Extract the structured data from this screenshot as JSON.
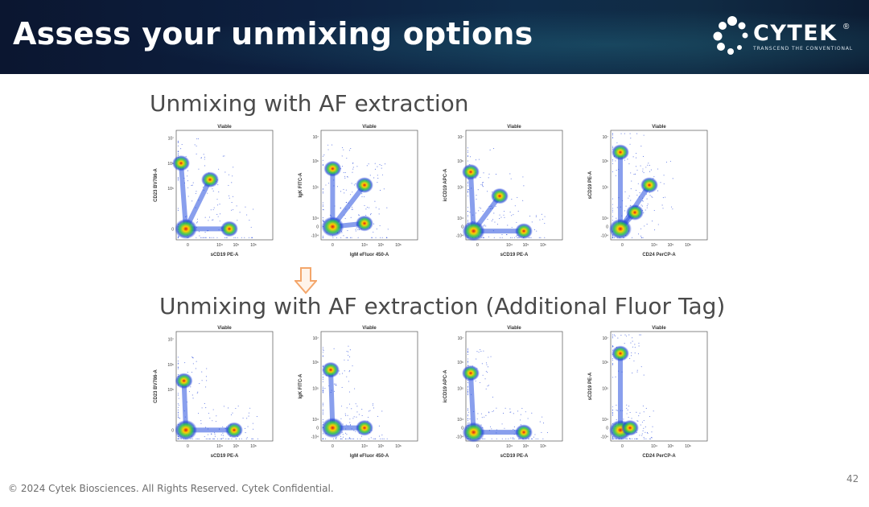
{
  "slide": {
    "title": "Assess your unmixing options",
    "logo_text": "CYTEK",
    "logo_mark": "®",
    "logo_tagline": "TRANSCEND THE CONVENTIONAL",
    "footer": "© 2024 Cytek Biosciences. All Rights Reserved. Cytek Confidential.",
    "page_number": "42",
    "accent_color": "#f3a66b"
  },
  "sections": [
    {
      "title": "Unmixing with AF extraction"
    },
    {
      "title": "Unmixing with AF extraction (Additional Fluor Tag)"
    }
  ],
  "chart_data": [
    {
      "type": "scatter",
      "plot_style": "density",
      "title": "Viable",
      "xlabel": "sCD19 PE-A",
      "ylabel": "CD23 BV786-A",
      "x_ticks": [
        "0",
        "10⁴",
        "10⁵",
        "10⁶"
      ],
      "y_ticks": [
        "0",
        "10⁵",
        "10⁶",
        "10⁷"
      ],
      "populations": [
        {
          "x": 0.1,
          "y": 0.1
        },
        {
          "x": 0.05,
          "y": 0.7
        },
        {
          "x": 0.55,
          "y": 0.1
        },
        {
          "x": 0.35,
          "y": 0.55
        }
      ]
    },
    {
      "type": "scatter",
      "plot_style": "density",
      "title": "Viable",
      "xlabel": "IgM eFluor 450-A",
      "ylabel": "IgK FITC-A",
      "x_ticks": [
        "0",
        "10⁴",
        "10⁵",
        "10⁶"
      ],
      "y_ticks": [
        "-10⁴",
        "0",
        "10⁴",
        "10⁵",
        "10⁶",
        "10⁷"
      ],
      "populations": [
        {
          "x": 0.12,
          "y": 0.12
        },
        {
          "x": 0.12,
          "y": 0.65
        },
        {
          "x": 0.45,
          "y": 0.15
        },
        {
          "x": 0.45,
          "y": 0.5
        }
      ]
    },
    {
      "type": "scatter",
      "plot_style": "density",
      "title": "Viable",
      "xlabel": "sCD19 PE-A",
      "ylabel": "icCD19 APC-A",
      "x_ticks": [
        "0",
        "10⁴",
        "10⁵",
        "10⁶"
      ],
      "y_ticks": [
        "-10⁴",
        "0",
        "10⁴",
        "10⁵",
        "10⁶",
        "10⁷"
      ],
      "populations": [
        {
          "x": 0.08,
          "y": 0.08
        },
        {
          "x": 0.05,
          "y": 0.62
        },
        {
          "x": 0.6,
          "y": 0.08
        },
        {
          "x": 0.35,
          "y": 0.4
        }
      ]
    },
    {
      "type": "scatter",
      "plot_style": "density",
      "title": "Viable",
      "xlabel": "CD24 PerCP-A",
      "ylabel": "sCD19 PE-A",
      "x_ticks": [
        "0",
        "10⁴",
        "10⁵",
        "10⁶"
      ],
      "y_ticks": [
        "-10⁴",
        "0",
        "10⁴",
        "10⁵",
        "10⁶",
        "10⁷"
      ],
      "populations": [
        {
          "x": 0.1,
          "y": 0.1
        },
        {
          "x": 0.1,
          "y": 0.8
        },
        {
          "x": 0.25,
          "y": 0.25
        },
        {
          "x": 0.4,
          "y": 0.5
        }
      ]
    },
    {
      "type": "scatter",
      "plot_style": "density",
      "title": "Viable",
      "xlabel": "sCD19 PE-A",
      "ylabel": "CD23 BV786-A",
      "x_ticks": [
        "0",
        "10⁴",
        "10⁵",
        "10⁶"
      ],
      "y_ticks": [
        "0",
        "10⁵",
        "10⁶",
        "10⁷"
      ],
      "populations": [
        {
          "x": 0.1,
          "y": 0.1
        },
        {
          "x": 0.08,
          "y": 0.55
        },
        {
          "x": 0.6,
          "y": 0.1
        }
      ]
    },
    {
      "type": "scatter",
      "plot_style": "density",
      "title": "Viable",
      "xlabel": "IgM eFluor 450-A",
      "ylabel": "IgK FITC-A",
      "x_ticks": [
        "0",
        "10⁴",
        "10⁵",
        "10⁶"
      ],
      "y_ticks": [
        "-10⁴",
        "0",
        "10⁴",
        "10⁵",
        "10⁶",
        "10⁷"
      ],
      "populations": [
        {
          "x": 0.12,
          "y": 0.12
        },
        {
          "x": 0.1,
          "y": 0.65
        },
        {
          "x": 0.45,
          "y": 0.12
        }
      ]
    },
    {
      "type": "scatter",
      "plot_style": "density",
      "title": "Viable",
      "xlabel": "sCD19 PE-A",
      "ylabel": "icCD19 APC-A",
      "x_ticks": [
        "0",
        "10⁴",
        "10⁵",
        "10⁶"
      ],
      "y_ticks": [
        "-10⁴",
        "0",
        "10⁴",
        "10⁵",
        "10⁶",
        "10⁷"
      ],
      "populations": [
        {
          "x": 0.08,
          "y": 0.08
        },
        {
          "x": 0.05,
          "y": 0.62
        },
        {
          "x": 0.6,
          "y": 0.08
        }
      ]
    },
    {
      "type": "scatter",
      "plot_style": "density",
      "title": "Viable",
      "xlabel": "CD24 PerCP-A",
      "ylabel": "sCD19 PE-A",
      "x_ticks": [
        "0",
        "10⁴",
        "10⁵",
        "10⁶"
      ],
      "y_ticks": [
        "-10⁴",
        "0",
        "10⁴",
        "10⁵",
        "10⁶",
        "10⁷"
      ],
      "populations": [
        {
          "x": 0.1,
          "y": 0.1
        },
        {
          "x": 0.1,
          "y": 0.8
        },
        {
          "x": 0.2,
          "y": 0.12
        }
      ]
    }
  ]
}
